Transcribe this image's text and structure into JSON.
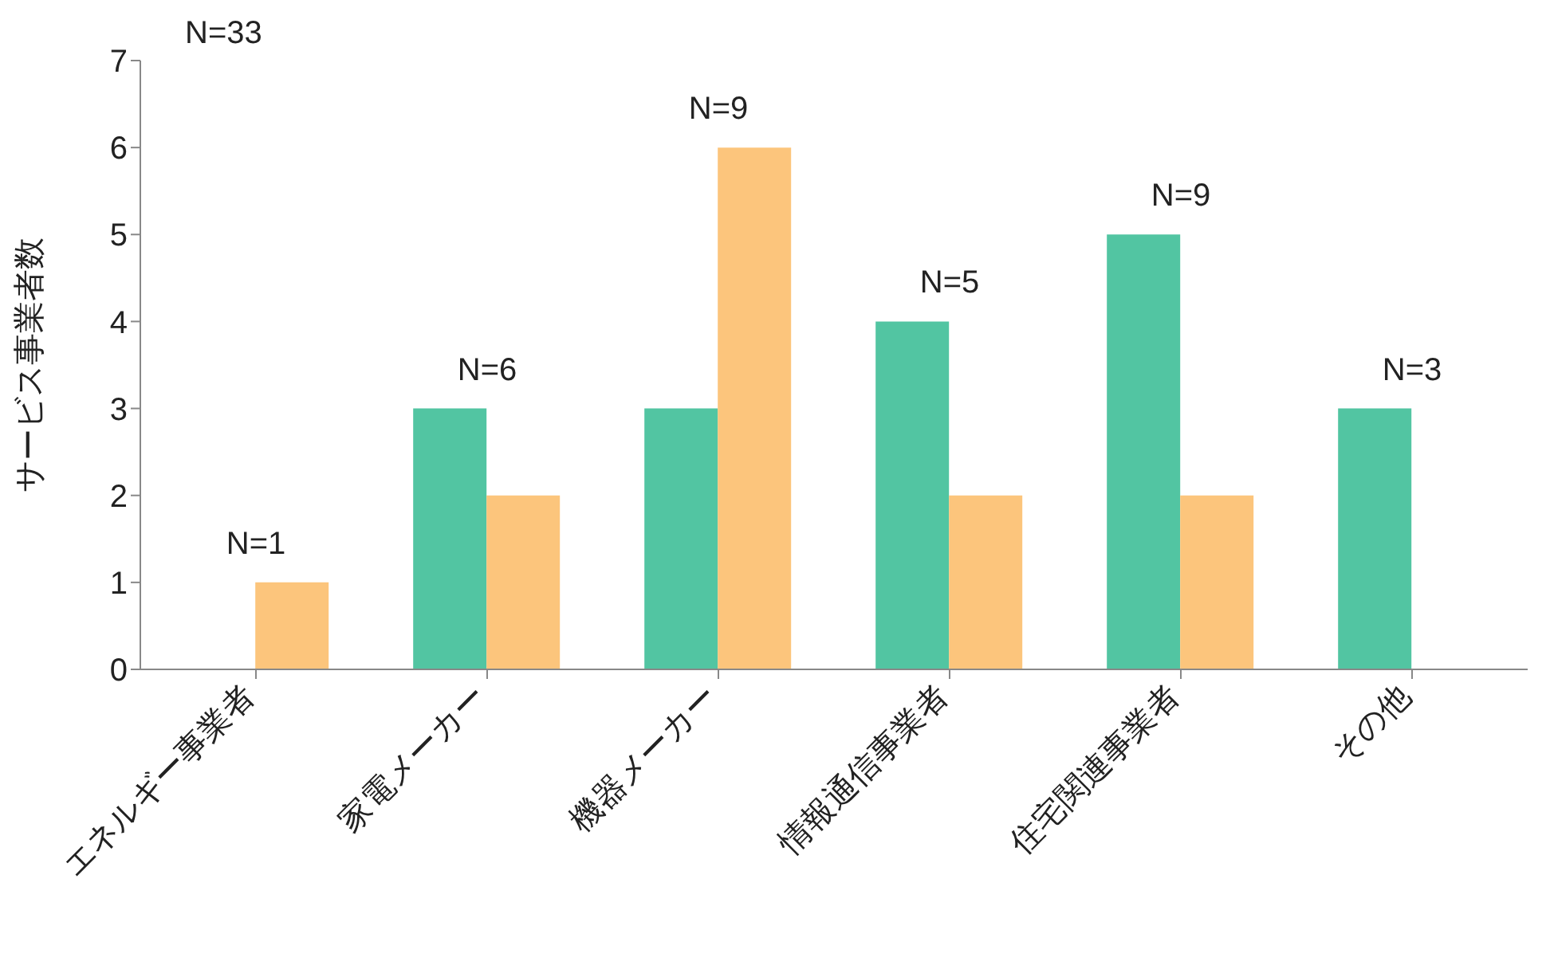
{
  "chart_data": {
    "type": "bar",
    "ylabel": "サービス事業者数",
    "categories": [
      "エネルギー事業者",
      "家電メーカー",
      "機器メーカー",
      "情報通信事業者",
      "住宅関連事業者",
      "その他"
    ],
    "series": [
      {
        "color": "#52c5a2",
        "values": [
          null,
          3,
          3,
          4,
          5,
          3
        ]
      },
      {
        "color": "#fcc57c",
        "values": [
          1,
          2,
          6,
          2,
          2,
          null
        ]
      }
    ],
    "ylim": [
      0,
      7
    ],
    "yticks": [
      0,
      1,
      2,
      3,
      4,
      5,
      6,
      7
    ],
    "grid": false,
    "legend": false,
    "annotations": [
      "N=33",
      {
        "text": "N=1",
        "x": "エネルギー事業者",
        "y": 1
      },
      {
        "text": "N=6",
        "x": "家電メーカー",
        "y": 3
      },
      {
        "text": "N=9",
        "x": "機器メーカー",
        "y": 6
      },
      {
        "text": "N=5",
        "x": "情報通信事業者",
        "y": 4
      },
      {
        "text": "N=9",
        "x": "住宅関連事業者",
        "y": 5
      },
      {
        "text": "N=3",
        "x": "その他",
        "y": 3
      }
    ]
  }
}
